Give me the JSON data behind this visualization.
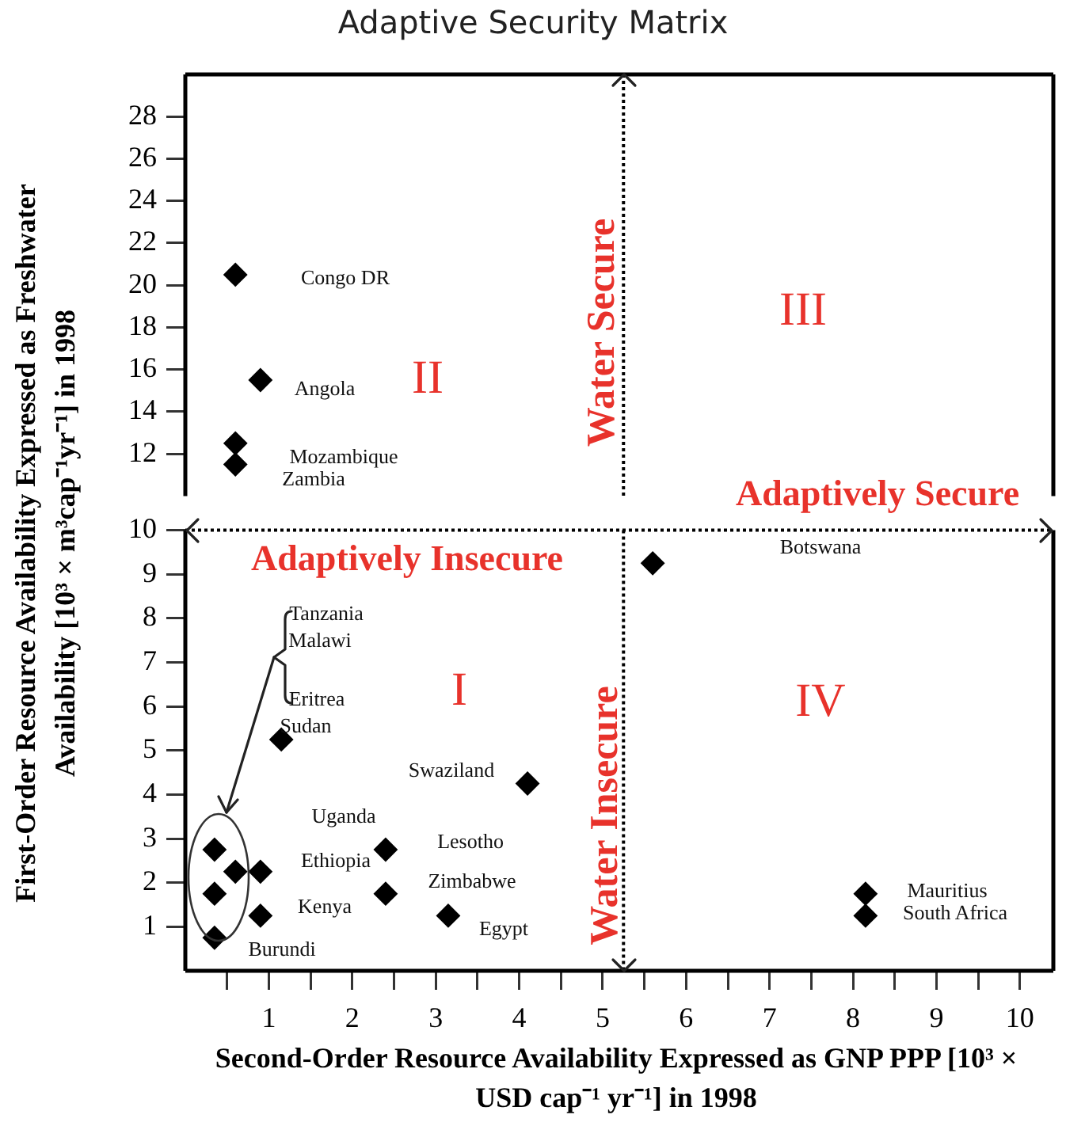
{
  "chart_data": [
    {
      "type": "scatter",
      "title": "Adaptive Security Matrix",
      "ylabel": "First-Order Resource Availability Expressed as Freshwater Availability [10³ × m³cap⁻¹yr⁻¹] in 1998",
      "x": [
        0.6,
        0.9,
        0.6,
        0.6
      ],
      "series": [
        {
          "color": "#000000",
          "values": [
            20.5,
            15.5,
            12.5,
            11.5
          ]
        }
      ],
      "xlim": [
        0,
        10.4
      ],
      "ylim": [
        10,
        30
      ],
      "yticks": [
        12,
        14,
        16,
        18,
        20,
        22,
        24,
        26,
        28
      ],
      "tick_labels": "y",
      "marker": "diamond",
      "grid": false,
      "ref_lines": [
        {
          "axis": "x",
          "value": 5.25,
          "line_style": "dotted"
        }
      ],
      "annotations": [
        "II",
        "III",
        "Water Secure",
        "Adaptively Secure",
        "Congo DR",
        "Angola",
        "Mozambique",
        "Zambia"
      ]
    },
    {
      "type": "scatter",
      "xlabel": "Second-Order Resource Availability Expressed as GNP PPP [10³ × USD cap⁻¹ yr⁻¹] in 1998",
      "x": [
        5.6,
        1.15,
        4.1,
        0.35,
        0.35,
        0.6,
        0.9,
        0.9,
        0.35,
        2.4,
        2.4,
        3.15,
        8.15,
        8.15
      ],
      "series": [
        {
          "color": "#000000",
          "values": [
            9.25,
            5.25,
            4.25,
            2.75,
            1.75,
            2.25,
            2.25,
            1.25,
            0.75,
            2.75,
            1.75,
            1.25,
            1.75,
            1.25
          ]
        }
      ],
      "xlim": [
        0,
        10.4
      ],
      "xticks": [
        {
          "value": 0.5,
          "label": null
        },
        1,
        {
          "value": 1.5,
          "label": null
        },
        2,
        {
          "value": 2.5,
          "label": null
        },
        3,
        {
          "value": 3.5,
          "label": null
        },
        4,
        {
          "value": 4.5,
          "label": null
        },
        5,
        {
          "value": 5.5,
          "label": null
        },
        6,
        {
          "value": 6.5,
          "label": null
        },
        7,
        {
          "value": 7.5,
          "label": null
        },
        8,
        {
          "value": 8.5,
          "label": null
        },
        9,
        {
          "value": 9.5,
          "label": null
        },
        10
      ],
      "ylim": [
        0,
        10
      ],
      "yticks": [
        1,
        2,
        3,
        4,
        5,
        6,
        7,
        8,
        9,
        10
      ],
      "marker": "diamond",
      "grid": false,
      "ref_lines": [
        {
          "axis": "x",
          "value": 5.25,
          "line_style": "dotted"
        },
        {
          "axis": "y",
          "value": 10,
          "line_style": "dotted"
        }
      ],
      "annotations": [
        "I",
        "IV",
        "Adaptively Insecure",
        "Water Insecure",
        "Tanzania",
        "Malawi",
        "Eritrea",
        "Sudan",
        "Swaziland",
        "Uganda",
        "Lesotho",
        "Ethiopia",
        "Zimbabwe",
        "Kenya",
        "Egypt",
        "Burundi",
        "Botswana",
        "Mauritius",
        "South Africa"
      ]
    }
  ]
}
